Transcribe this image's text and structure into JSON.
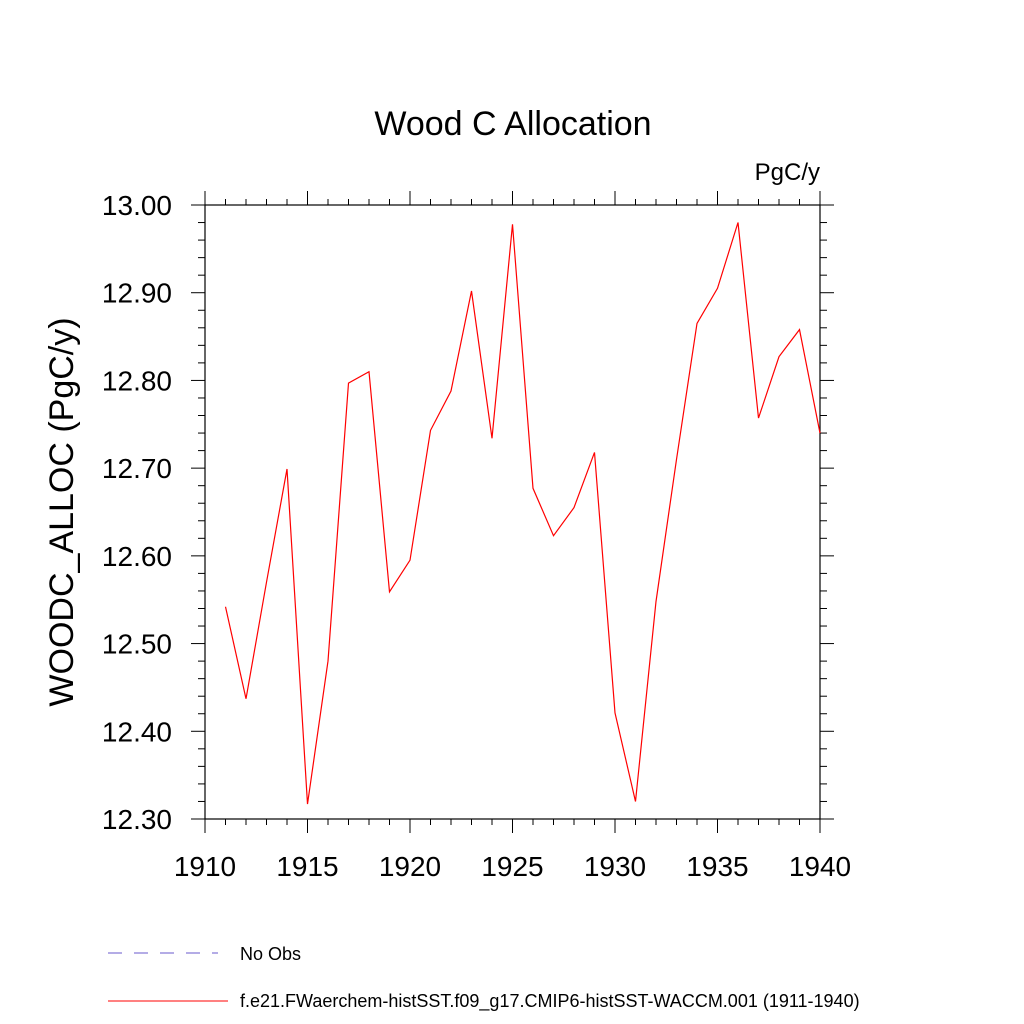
{
  "chart_data": {
    "type": "line",
    "title": "Wood C Allocation",
    "units": "PgC/y",
    "ylabel": "WOODC_ALLOC  (PgC/y)",
    "xlabel": "",
    "xlim": [
      1910,
      1940
    ],
    "ylim": [
      12.3,
      13.0
    ],
    "x_ticks": [
      1910,
      1915,
      1920,
      1925,
      1930,
      1935,
      1940
    ],
    "x_tick_labels": [
      "1910",
      "1915",
      "1920",
      "1925",
      "1930",
      "1935",
      "1940"
    ],
    "y_ticks": [
      12.3,
      12.4,
      12.5,
      12.6,
      12.7,
      12.8,
      12.9,
      13.0
    ],
    "y_tick_labels": [
      "12.30",
      "12.40",
      "12.50",
      "12.60",
      "12.70",
      "12.80",
      "12.90",
      "13.00"
    ],
    "grid": false,
    "legend_position": "bottom-left",
    "series": [
      {
        "name": "f.e21.FWaerchem-histSST.f09_g17.CMIP6-histSST-WACCM.001 (1911-1940)",
        "color": "#ff0000",
        "style": "solid",
        "x": [
          1911,
          1912,
          1913,
          1914,
          1915,
          1916,
          1917,
          1918,
          1919,
          1920,
          1921,
          1922,
          1923,
          1924,
          1925,
          1926,
          1927,
          1928,
          1929,
          1930,
          1931,
          1932,
          1933,
          1934,
          1935,
          1936,
          1937,
          1938,
          1939,
          1940
        ],
        "values": [
          12.542,
          12.437,
          12.57,
          12.699,
          12.317,
          12.48,
          12.797,
          12.81,
          12.559,
          12.595,
          12.743,
          12.788,
          12.902,
          12.734,
          12.978,
          12.677,
          12.623,
          12.655,
          12.718,
          12.421,
          12.32,
          12.548,
          12.71,
          12.865,
          12.905,
          12.98,
          12.757,
          12.827,
          12.858,
          12.74
        ]
      }
    ],
    "legend": [
      {
        "label": "No Obs",
        "color": "#6a5acd",
        "style": "dashed"
      },
      {
        "label": "f.e21.FWaerchem-histSST.f09_g17.CMIP6-histSST-WACCM.001 (1911-1940)",
        "color": "#ff0000",
        "style": "solid"
      }
    ]
  }
}
